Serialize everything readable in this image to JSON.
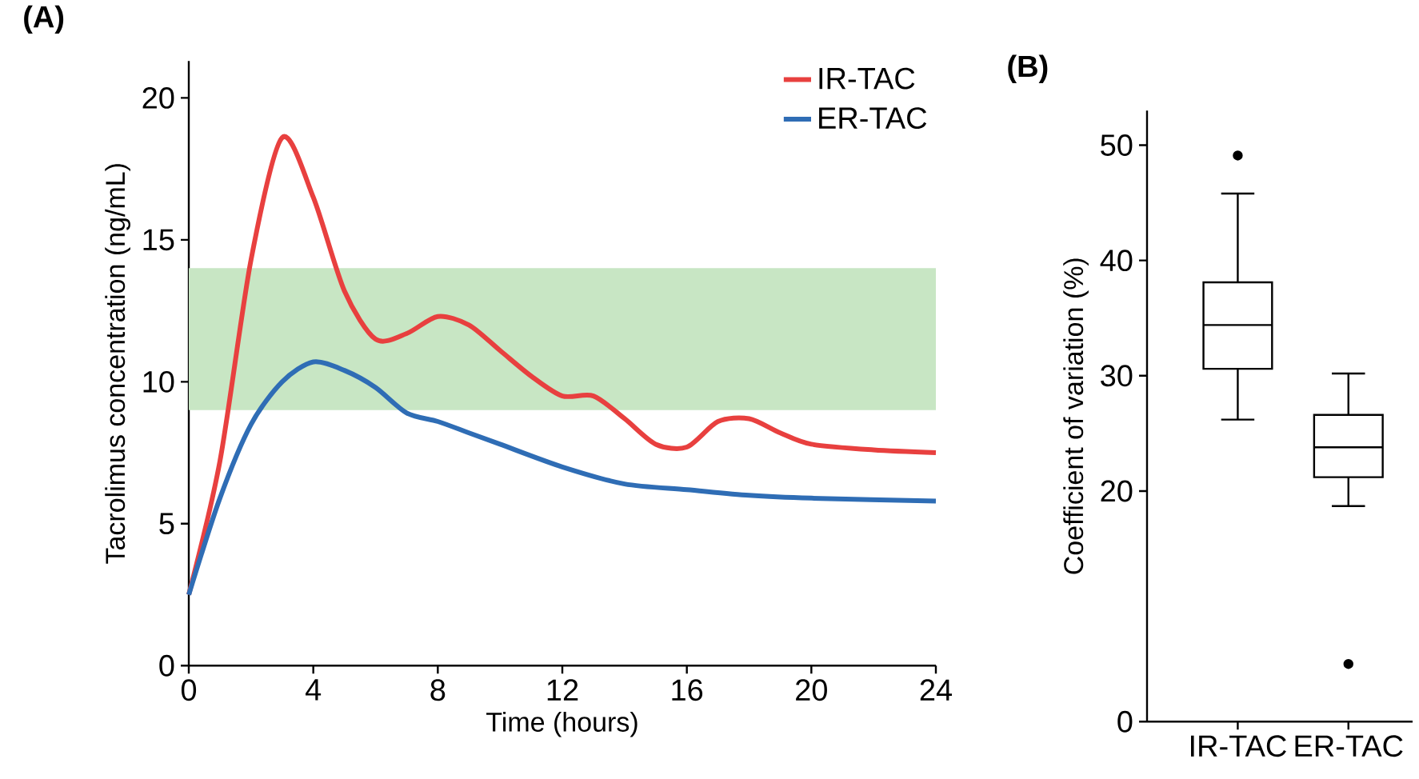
{
  "chart_data": [
    {
      "type": "line",
      "title": "(A)",
      "xlabel": "Time (hours)",
      "ylabel": "Tacrolimus concentration (ng/mL)",
      "legend": "top right",
      "xlim": [
        0,
        24
      ],
      "xticks": [
        0,
        4,
        8,
        12,
        16,
        20,
        24
      ],
      "ylim": [
        0,
        21.3
      ],
      "yticks": [
        0,
        5,
        10,
        15,
        20
      ],
      "bands": [
        {
          "axis": "y",
          "from": 9,
          "to": 14,
          "color": "#c8e6c4"
        }
      ],
      "series": [
        {
          "name": "IR-TAC",
          "color": "#e8403f",
          "x": [
            0,
            1,
            2,
            3,
            4,
            5,
            6,
            7,
            8,
            9,
            10,
            11,
            12,
            13,
            14,
            15,
            16,
            17,
            18,
            19,
            20,
            22,
            24
          ],
          "values": [
            2.5,
            7.2,
            14.3,
            18.6,
            16.5,
            13.2,
            11.5,
            11.7,
            12.3,
            12.0,
            11.1,
            10.2,
            9.5,
            9.5,
            8.7,
            7.8,
            7.7,
            8.6,
            8.7,
            8.2,
            7.8,
            7.6,
            7.5
          ]
        },
        {
          "name": "ER-TAC",
          "color": "#2f6db5",
          "x": [
            0,
            1,
            2,
            3,
            4,
            5,
            6,
            7,
            8,
            9,
            10,
            12,
            14,
            16,
            18,
            20,
            24
          ],
          "values": [
            2.5,
            5.9,
            8.5,
            10.0,
            10.7,
            10.4,
            9.8,
            8.9,
            8.6,
            8.2,
            7.8,
            7.0,
            6.4,
            6.2,
            6.0,
            5.9,
            5.8
          ]
        }
      ]
    },
    {
      "type": "box",
      "title": "(B)",
      "ylabel": "Coefficient of variation (%)",
      "categories": [
        "IR-TAC",
        "ER-TAC"
      ],
      "ylim": [
        0,
        53
      ],
      "yticks": [
        0,
        20,
        30,
        40,
        50
      ],
      "boxes": [
        {
          "low": 26.2,
          "q1": 30.6,
          "median": 34.4,
          "q3": 38.1,
          "high": 45.8,
          "outliers": [
            49.1
          ]
        },
        {
          "low": 18.7,
          "q1": 21.2,
          "median": 23.8,
          "q3": 26.6,
          "high": 30.2,
          "outliers": [
            5
          ]
        }
      ]
    }
  ]
}
